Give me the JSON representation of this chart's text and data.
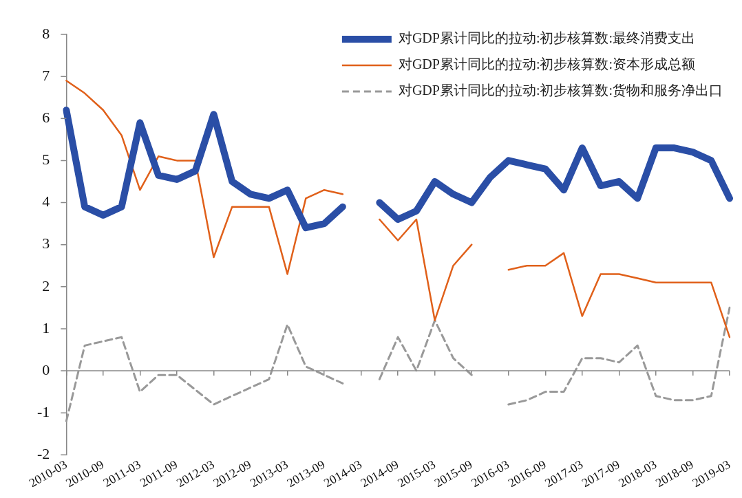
{
  "chart_data": {
    "type": "line",
    "categories": [
      "2010-03",
      null,
      "2010-09",
      null,
      "2011-03",
      null,
      "2011-09",
      null,
      "2012-03",
      null,
      "2012-09",
      null,
      "2013-03",
      null,
      "2013-09",
      null,
      "2014-03",
      null,
      "2014-09",
      null,
      "2015-03",
      null,
      "2015-09",
      null,
      "2016-03",
      null,
      "2016-09",
      null,
      "2017-03",
      null,
      "2017-09",
      null,
      "2018-03",
      null,
      "2018-09",
      null,
      "2019-03"
    ],
    "series": [
      {
        "name": "对GDP累计同比的拉动:初步核算数:最终消费支出",
        "color": "#2a4ea6",
        "values": [
          6.2,
          3.9,
          3.7,
          3.9,
          5.9,
          4.65,
          4.55,
          4.75,
          6.1,
          4.5,
          4.2,
          4.1,
          4.3,
          3.4,
          3.5,
          3.9,
          null,
          4.0,
          3.6,
          3.8,
          4.5,
          4.2,
          4.0,
          4.6,
          5.0,
          4.9,
          4.8,
          4.3,
          5.3,
          4.4,
          4.5,
          4.1,
          5.3,
          5.3,
          5.2,
          5.0,
          4.1
        ]
      },
      {
        "name": "对GDP累计同比的拉动:初步核算数:资本形成总额",
        "color": "#e0601a",
        "values": [
          6.9,
          6.6,
          6.2,
          5.6,
          4.3,
          5.1,
          5.0,
          5.0,
          2.7,
          3.9,
          3.9,
          3.9,
          2.3,
          4.1,
          4.3,
          4.2,
          null,
          3.6,
          3.1,
          3.6,
          1.2,
          2.5,
          3.0,
          null,
          2.4,
          2.5,
          2.5,
          2.8,
          1.3,
          2.3,
          2.3,
          2.2,
          2.1,
          2.1,
          2.1,
          2.1,
          0.8
        ]
      },
      {
        "name": "对GDP累计同比的拉动:初步核算数:货物和服务净出口",
        "color": "#999999",
        "line_style": "dashed",
        "values": [
          -1.2,
          0.6,
          0.7,
          0.8,
          -0.5,
          -0.1,
          -0.1,
          -0.45,
          -0.8,
          -0.6,
          -0.4,
          -0.2,
          1.1,
          0.1,
          -0.1,
          -0.3,
          null,
          -0.2,
          0.8,
          0,
          1.2,
          0.3,
          -0.1,
          null,
          -0.8,
          -0.7,
          -0.5,
          -0.5,
          0.3,
          0.3,
          0.2,
          0.6,
          -0.6,
          -0.7,
          -0.7,
          -0.6,
          1.5
        ]
      }
    ],
    "ylim": [
      -2,
      8
    ],
    "yticks": [
      -2,
      -1,
      0,
      1,
      2,
      3,
      4,
      5,
      6,
      7,
      8
    ],
    "ref_lines": [
      {
        "axis": "y",
        "value": 0,
        "color": "#888888",
        "line_style": "solid"
      }
    ],
    "legend": "top right",
    "grid": false,
    "marker": "none"
  }
}
